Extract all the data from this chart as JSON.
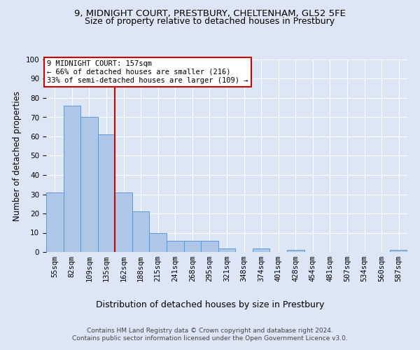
{
  "title_line1": "9, MIDNIGHT COURT, PRESTBURY, CHELTENHAM, GL52 5FE",
  "title_line2": "Size of property relative to detached houses in Prestbury",
  "xlabel": "Distribution of detached houses by size in Prestbury",
  "ylabel": "Number of detached properties",
  "categories": [
    "55sqm",
    "82sqm",
    "109sqm",
    "135sqm",
    "162sqm",
    "188sqm",
    "215sqm",
    "241sqm",
    "268sqm",
    "295sqm",
    "321sqm",
    "348sqm",
    "374sqm",
    "401sqm",
    "428sqm",
    "454sqm",
    "481sqm",
    "507sqm",
    "534sqm",
    "560sqm",
    "587sqm"
  ],
  "values": [
    31,
    76,
    70,
    61,
    31,
    21,
    10,
    6,
    6,
    6,
    2,
    0,
    2,
    0,
    1,
    0,
    0,
    0,
    0,
    0,
    1
  ],
  "bar_color": "#aec6e8",
  "bar_edge_color": "#5b9bd5",
  "vline_x": 3.5,
  "vline_color": "#cc0000",
  "annotation_text": "9 MIDNIGHT COURT: 157sqm\n← 66% of detached houses are smaller (216)\n33% of semi-detached houses are larger (109) →",
  "annotation_box_color": "#ffffff",
  "annotation_box_edge": "#cc0000",
  "ylim": [
    0,
    100
  ],
  "yticks": [
    0,
    10,
    20,
    30,
    40,
    50,
    60,
    70,
    80,
    90,
    100
  ],
  "background_color": "#dce6f5",
  "plot_bg_color": "#dce6f5",
  "footer_line1": "Contains HM Land Registry data © Crown copyright and database right 2024.",
  "footer_line2": "Contains public sector information licensed under the Open Government Licence v3.0.",
  "grid_color": "#ffffff",
  "title_fontsize": 9.5,
  "subtitle_fontsize": 9,
  "tick_fontsize": 7.5,
  "xlabel_fontsize": 9,
  "ylabel_fontsize": 8.5,
  "annotation_fontsize": 7.5
}
